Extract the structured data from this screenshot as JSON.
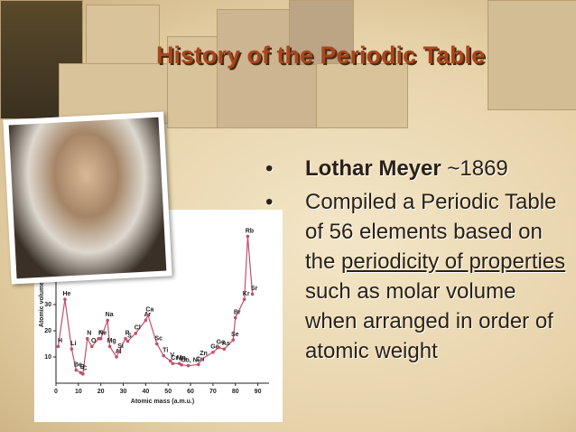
{
  "title": "History of the Periodic Table",
  "bullets": [
    {
      "marker": "•",
      "bold": "Lothar Meyer",
      "text": "~1869"
    },
    {
      "marker": "•",
      "before": "Compiled a Periodic Table of 56 elements based on the",
      "link": "periodicity of properties",
      "after": "such as molar volume when arranged in order of atomic weight"
    }
  ],
  "chart_data": {
    "type": "line",
    "x_label": "Atomic mass (a.m.u.)",
    "y_label": "Atomic volume",
    "x": [
      1,
      4,
      7,
      9,
      11,
      12,
      14,
      16,
      19,
      20,
      23,
      24,
      27,
      28,
      31,
      32,
      35.5,
      40,
      41,
      45,
      48,
      51,
      52,
      55,
      56,
      59,
      63.5,
      65,
      70,
      72.6,
      75,
      79,
      80,
      84,
      85.5,
      87.6
    ],
    "values": [
      14,
      32,
      13,
      5,
      4,
      3.5,
      17,
      14,
      17,
      17,
      24,
      14,
      10,
      12,
      17,
      16,
      19,
      24,
      26,
      15,
      10.5,
      8.5,
      7.5,
      7.5,
      7,
      6.7,
      7.1,
      9.2,
      11.8,
      13.6,
      13,
      16.5,
      25,
      32,
      56,
      34
    ],
    "point_labels": [
      "H",
      "He",
      "Li",
      "Be",
      "B",
      "C",
      "N",
      "O",
      "F",
      "Ne",
      "Na",
      "Mg",
      "Al",
      "Si",
      "P",
      "S",
      "Cl",
      "Ar",
      "Ca",
      "Sc",
      "Ti",
      "V",
      "Cr",
      "Mn",
      "Fe",
      "Co, Ni",
      "Cu",
      "Zn",
      "Ga",
      "Ge",
      "As",
      "Se",
      "Br",
      "Kr",
      "Rb",
      "Sr"
    ],
    "color": "#c0506a",
    "xlim": [
      0,
      95
    ],
    "ylim": [
      0,
      60
    ],
    "xticks": [
      0,
      10,
      20,
      30,
      40,
      50,
      60,
      70,
      80,
      90
    ],
    "yticks": [
      10,
      20,
      30
    ]
  }
}
